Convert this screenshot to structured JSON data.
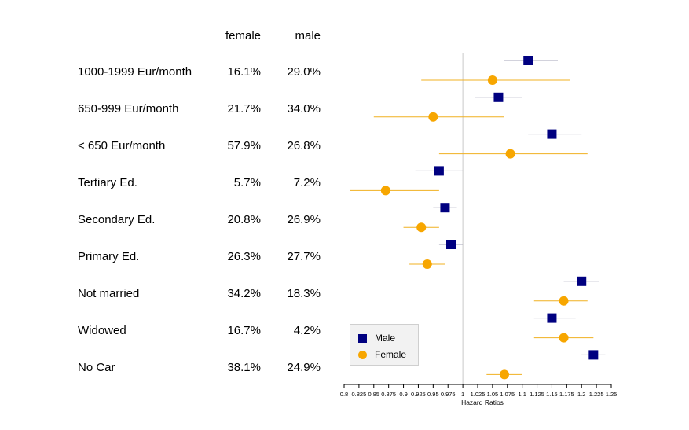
{
  "table": {
    "female_header": "female",
    "male_header": "male",
    "rows": [
      {
        "label": "1000-1999  Eur/month",
        "female": "16.1%",
        "male": "29.0%"
      },
      {
        "label": "650-999 Eur/month",
        "female": "21.7%",
        "male": "34.0%"
      },
      {
        "label": "< 650 Eur/month",
        "female": "57.9%",
        "male": "26.8%"
      },
      {
        "label": "Tertiary Ed.",
        "female": "5.7%",
        "male": "7.2%"
      },
      {
        "label": "Secondary Ed.",
        "female": "20.8%",
        "male": "26.9%"
      },
      {
        "label": "Primary Ed.",
        "female": "26.3%",
        "male": "27.7%"
      },
      {
        "label": "Not married",
        "female": "34.2%",
        "male": "18.3%"
      },
      {
        "label": "Widowed",
        "female": "16.7%",
        "male": "4.2%"
      },
      {
        "label": "No Car",
        "female": "38.1%",
        "male": "24.9%"
      }
    ]
  },
  "chart_data": {
    "type": "scatter",
    "xlabel": "Hazard Ratios",
    "xlim": [
      0.8,
      1.25
    ],
    "reference_line": 1,
    "x_ticks": [
      "0.8",
      "0.825",
      "0.85",
      "0.875",
      "0.9",
      "0.925",
      "0.95",
      "0.975",
      "1",
      "1.025",
      "1.05",
      "1.075",
      "1.1",
      "1.125",
      "1.15",
      "1.175",
      "1.2",
      "1.225",
      "1.25"
    ],
    "categories": [
      "1000-1999  Eur/month",
      "650-999 Eur/month",
      "< 650 Eur/month",
      "Tertiary Ed.",
      "Secondary Ed.",
      "Primary Ed.",
      "Not married",
      "Widowed",
      "No Car"
    ],
    "series": [
      {
        "name": "Male",
        "color": "#000080",
        "marker": "square",
        "ci_color": "#a6a6b8",
        "estimates": [
          1.11,
          1.06,
          1.15,
          0.96,
          0.97,
          0.98,
          1.2,
          1.15,
          1.22
        ],
        "lower": [
          1.07,
          1.02,
          1.11,
          0.92,
          0.95,
          0.96,
          1.17,
          1.12,
          1.2
        ],
        "upper": [
          1.16,
          1.1,
          1.2,
          1.0,
          0.99,
          1.0,
          1.23,
          1.19,
          1.24
        ]
      },
      {
        "name": "Female",
        "color": "#f7a600",
        "marker": "circle",
        "ci_color": "#f0b020",
        "estimates": [
          1.05,
          0.95,
          1.08,
          0.87,
          0.93,
          0.94,
          1.17,
          1.17,
          1.07
        ],
        "lower": [
          0.93,
          0.85,
          0.96,
          0.81,
          0.9,
          0.91,
          1.12,
          1.12,
          1.04
        ],
        "upper": [
          1.18,
          1.07,
          1.21,
          0.96,
          0.96,
          0.97,
          1.21,
          1.22,
          1.1
        ]
      }
    ],
    "legend_position": "bottom-left"
  }
}
